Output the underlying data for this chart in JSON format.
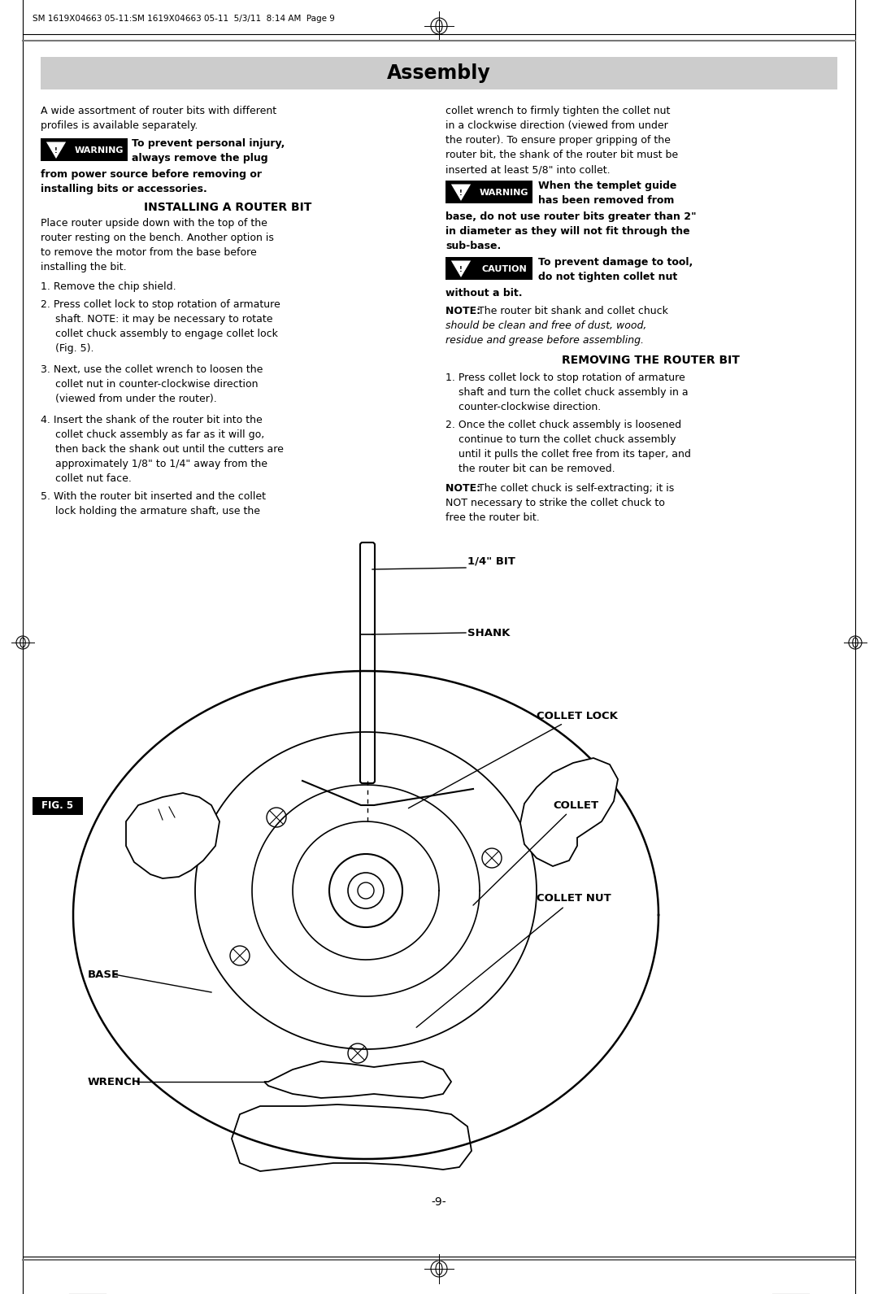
{
  "page_header": "SM 1619X04663 05-11:SM 1619X04663 05-11  5/3/11  8:14 AM  Page 9",
  "title": "Assembly",
  "title_bg": "#d0d0d0",
  "bg_color": "#ffffff",
  "body_font_size": 9,
  "page_number": "-9-",
  "fig_label": "FIG. 5",
  "diagram_labels": {
    "bit_14": "1/4\" BIT",
    "shank": "SHANK",
    "collet_lock": "COLLET LOCK",
    "collet": "COLLET",
    "collet_nut": "COLLET NUT",
    "base": "BASE",
    "wrench": "WRENCH"
  }
}
